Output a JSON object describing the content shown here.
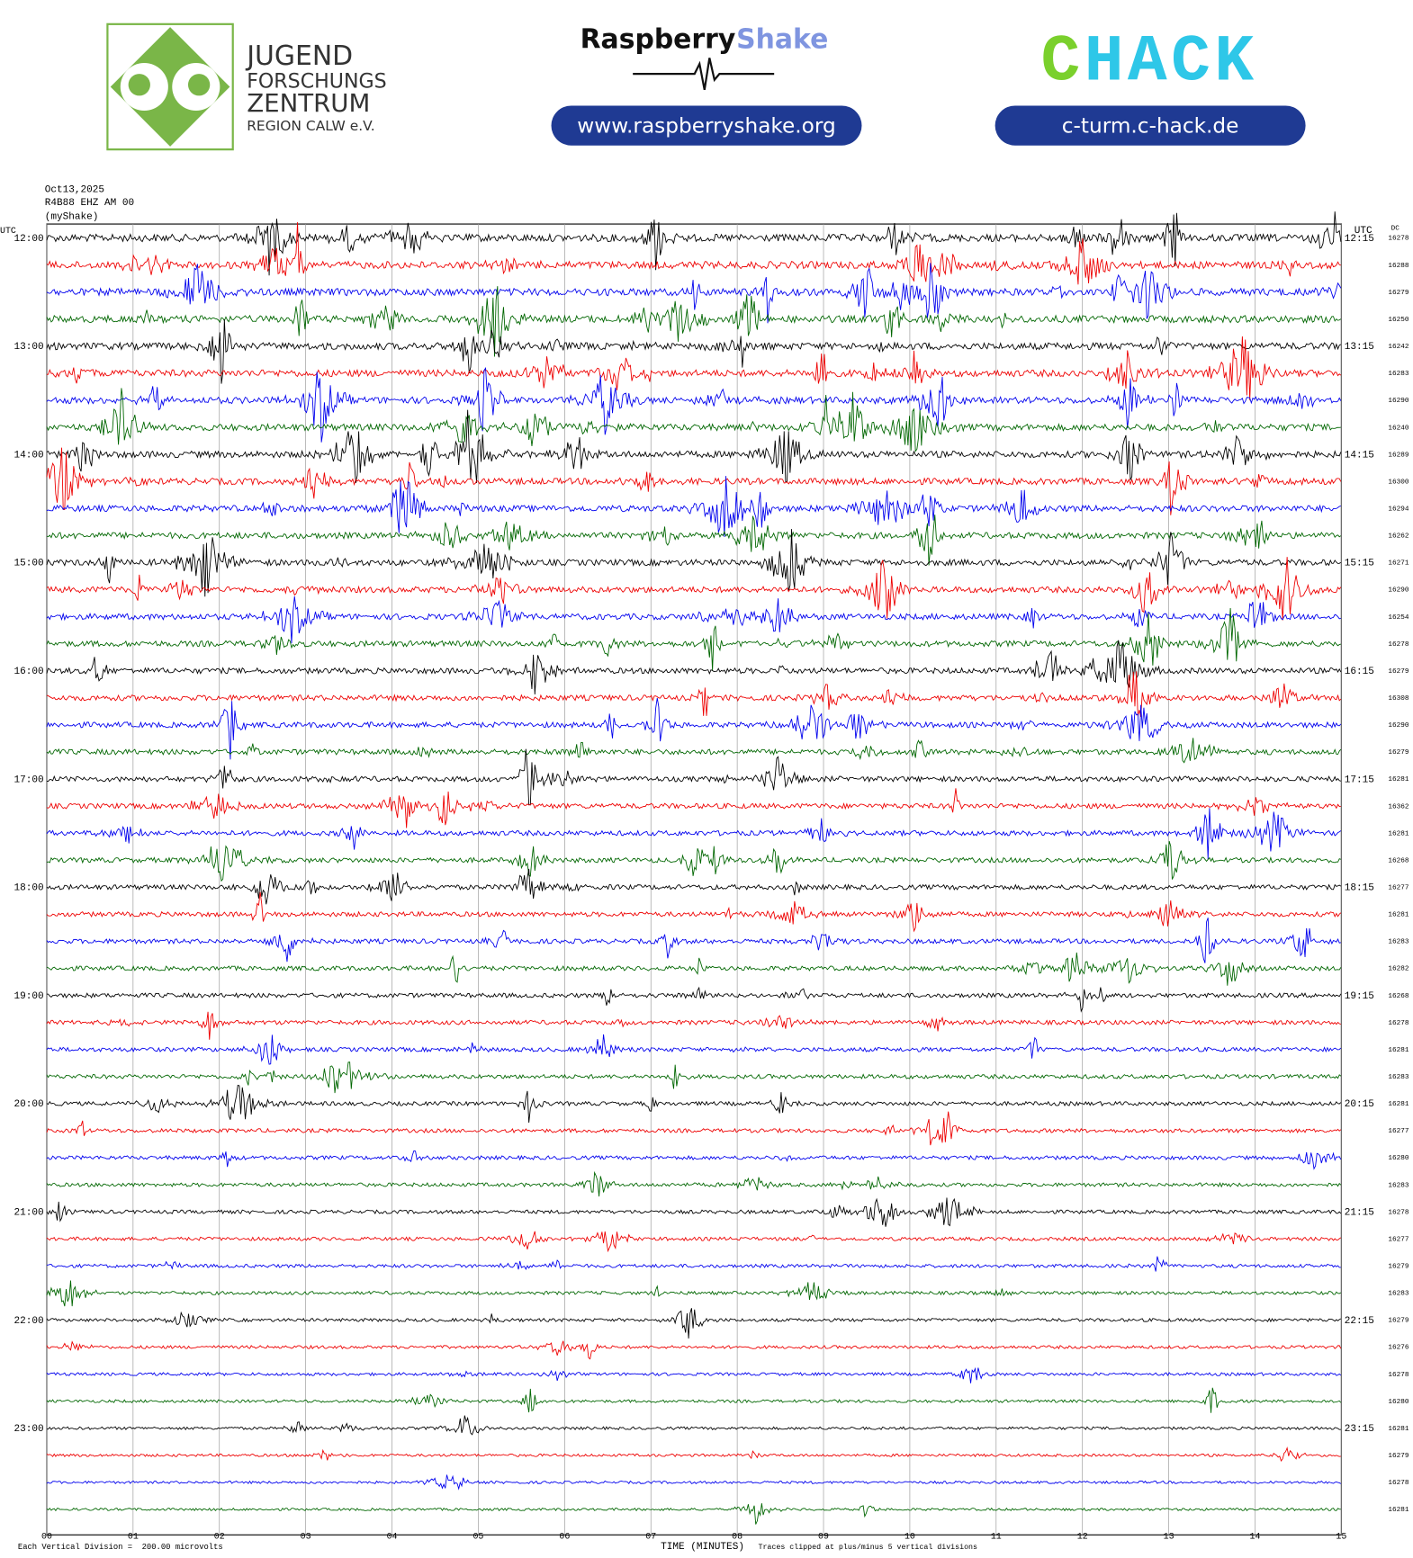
{
  "header": {
    "jfz": [
      "JUGEND",
      "FORSCHUNGS",
      "ZENTRUM",
      "REGION CALW e.V."
    ],
    "rs_name": "Raspberry",
    "rs_shake": "Shake",
    "rs_url": "www.raspberryshake.org",
    "chack_c": "C",
    "chack_rest": "HACK",
    "chack_url": "c-turm.c-hack.de"
  },
  "station": {
    "date": "Oct13,2025",
    "channel": "R4B88 EHZ AM 00",
    "name": "(myShake)"
  },
  "plot": {
    "utc_left": "UTC",
    "utc_right": "UTC",
    "dc_header": "DC",
    "left_times": [
      "12:00",
      "13:00",
      "14:00",
      "15:00",
      "16:00",
      "17:00",
      "18:00",
      "19:00",
      "20:00",
      "21:00",
      "22:00",
      "23:00"
    ],
    "right_times": [
      "12:15",
      "13:15",
      "14:15",
      "15:15",
      "16:15",
      "17:15",
      "18:15",
      "19:15",
      "20:15",
      "21:15",
      "22:15",
      "23:15"
    ],
    "dc_values": [
      "16278",
      "16288",
      "16279",
      "16250",
      "16242",
      "16283",
      "16290",
      "16240",
      "16289",
      "16300",
      "16294",
      "16262",
      "16271",
      "16290",
      "16254",
      "16278",
      "16279",
      "16308",
      "16290",
      "16279",
      "16281",
      "16362",
      "16281",
      "16268",
      "16277",
      "16281",
      "16283",
      "16282",
      "16268",
      "16278",
      "16281",
      "16283",
      "16281",
      "16277",
      "16280",
      "16283",
      "16278",
      "16277",
      "16279",
      "16283",
      "16279",
      "16276",
      "16278",
      "16280",
      "16281",
      "16279",
      "16278",
      "16281"
    ],
    "minute_labels": [
      "00",
      "01",
      "02",
      "03",
      "04",
      "05",
      "06",
      "07",
      "08",
      "09",
      "10",
      "11",
      "12",
      "13",
      "14",
      "15"
    ],
    "scale_note": "Each Vertical Division =  200.00 microvolts",
    "x_label": "TIME (MINUTES)",
    "clip_note": "Traces clipped at plus/minus 5 vertical divisions"
  }
}
